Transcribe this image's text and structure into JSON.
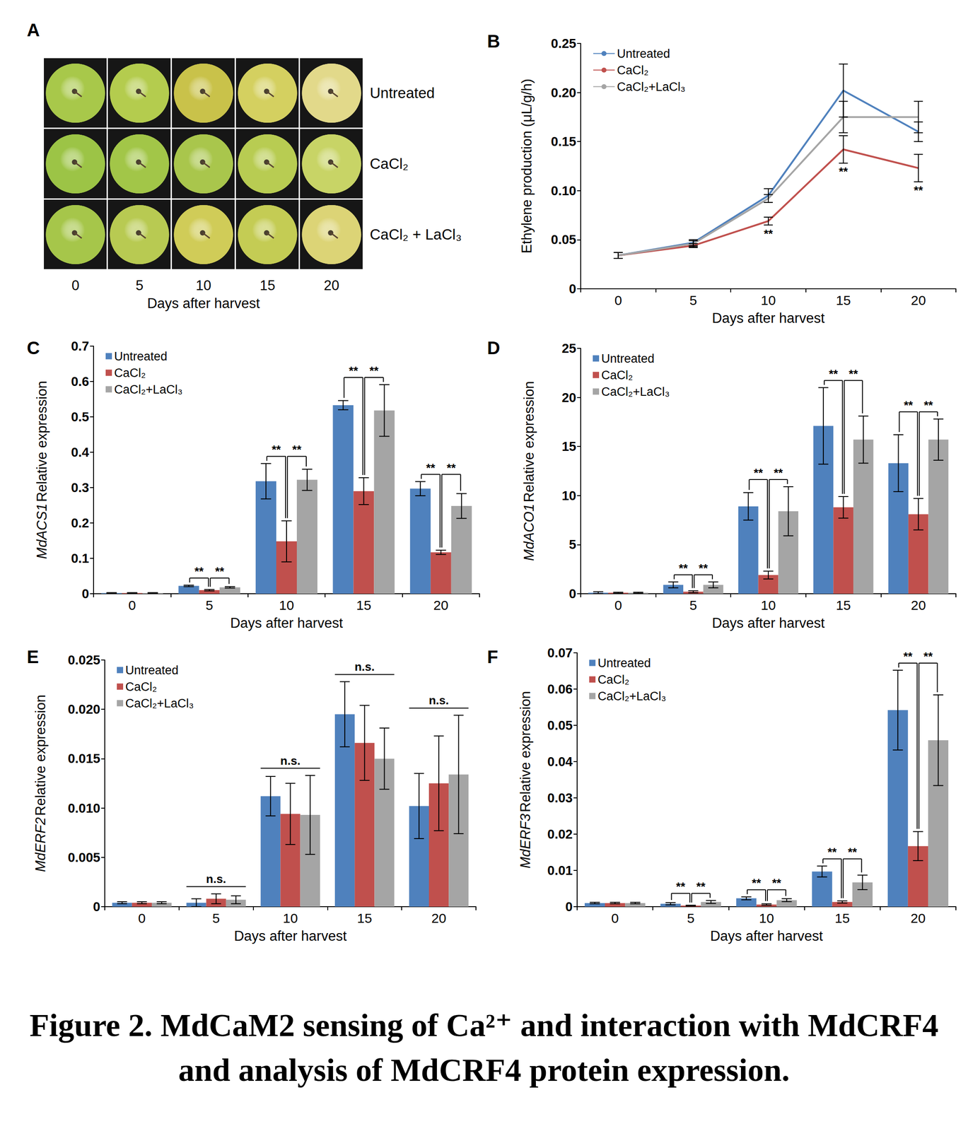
{
  "panel_a": {
    "panel": "A",
    "columns": [
      "0",
      "5",
      "10",
      "15",
      "20"
    ],
    "x_label": "Days after harvest",
    "rows": [
      {
        "label": "Untreated",
        "colors": [
          "#a8c84a",
          "#b4cc4e",
          "#c9c24a",
          "#d4d060",
          "#e2d98a"
        ]
      },
      {
        "label": "CaCl₂",
        "colors": [
          "#9cc446",
          "#a2c648",
          "#a9c64c",
          "#b8cc52",
          "#c8d466"
        ]
      },
      {
        "label": "CaCl₂ + LaCl₃",
        "colors": [
          "#a6c64a",
          "#b8ca52",
          "#d0cc58",
          "#c4cc54",
          "#dcd476"
        ]
      }
    ]
  },
  "chart_data": [
    {
      "panel": "B",
      "type": "line",
      "x_label": "Days after harvest",
      "y_label": "Ethylene production (μL/g/h)",
      "categories": [
        "0",
        "5",
        "10",
        "15",
        "20"
      ],
      "ylim": [
        0,
        0.25
      ],
      "yticks": [
        0,
        0.05,
        {
          "value": 0.1,
          "label": "0.10"
        },
        0.15,
        {
          "value": 0.2,
          "label": "0.20"
        },
        0.25
      ],
      "grid": false,
      "legend": "upper left",
      "marker": "none",
      "line_style": "solid",
      "series": [
        {
          "name": "Untreated",
          "color": "#4f81bd",
          "values": [
            0.034,
            0.047,
            0.095,
            0.202,
            0.16
          ],
          "errors": [
            0.003,
            0.003,
            0.007,
            0.027,
            0.01
          ]
        },
        {
          "name": "CaCl₂",
          "color": "#c0504d",
          "values": [
            0.034,
            0.044,
            0.069,
            0.142,
            0.123
          ],
          "errors": [
            0.003,
            0.002,
            0.004,
            0.014,
            0.014
          ]
        },
        {
          "name": "CaCl₂+LaCl₃",
          "color": "#a5a5a5",
          "values": [
            0.034,
            0.046,
            0.092,
            0.175,
            0.175
          ],
          "errors": [
            0.003,
            0.003,
            0.004,
            0.016,
            0.016
          ]
        }
      ],
      "annotations": [
        {
          "x": "10",
          "text": "**",
          "below": "CaCl₂"
        },
        {
          "x": "15",
          "text": "**",
          "below": "CaCl₂"
        },
        {
          "x": "20",
          "text": "**",
          "below": "CaCl₂"
        }
      ]
    },
    {
      "panel": "C",
      "type": "bar",
      "x_label": "Days after harvest",
      "y_label": "MdACS1 Relative expression",
      "categories": [
        "0",
        "5",
        "10",
        "15",
        "20"
      ],
      "ylim": [
        0,
        0.7
      ],
      "yticks": [
        0,
        0.1,
        0.2,
        0.3,
        0.4,
        0.5,
        0.6,
        0.7
      ],
      "grid": false,
      "legend": "upper left",
      "series": [
        {
          "name": "Untreated",
          "color": "#4f81bd",
          "values": [
            0.002,
            0.022,
            0.318,
            0.533,
            0.297
          ],
          "errors": [
            0.001,
            0.002,
            0.05,
            0.013,
            0.02
          ]
        },
        {
          "name": "CaCl₂",
          "color": "#c0504d",
          "values": [
            0.002,
            0.01,
            0.148,
            0.29,
            0.117
          ],
          "errors": [
            0.001,
            0.002,
            0.058,
            0.038,
            0.006
          ]
        },
        {
          "name": "CaCl₂+LaCl₃",
          "color": "#a5a5a5",
          "values": [
            0.002,
            0.018,
            0.322,
            0.518,
            0.248
          ],
          "errors": [
            0.001,
            0.002,
            0.03,
            0.073,
            0.035
          ]
        }
      ],
      "annotations": [
        {
          "x": "5",
          "text": "**",
          "between": [
            "Untreated",
            "CaCl₂"
          ]
        },
        {
          "x": "5",
          "text": "**",
          "between": [
            "CaCl₂",
            "CaCl₂+LaCl₃"
          ]
        },
        {
          "x": "10",
          "text": "**",
          "between": [
            "Untreated",
            "CaCl₂"
          ]
        },
        {
          "x": "10",
          "text": "**",
          "between": [
            "CaCl₂",
            "CaCl₂+LaCl₃"
          ]
        },
        {
          "x": "15",
          "text": "**",
          "between": [
            "Untreated",
            "CaCl₂"
          ]
        },
        {
          "x": "15",
          "text": "**",
          "between": [
            "CaCl₂",
            "CaCl₂+LaCl₃"
          ]
        },
        {
          "x": "20",
          "text": "**",
          "between": [
            "Untreated",
            "CaCl₂"
          ]
        },
        {
          "x": "20",
          "text": "**",
          "between": [
            "CaCl₂",
            "CaCl₂+LaCl₃"
          ]
        }
      ]
    },
    {
      "panel": "D",
      "type": "bar",
      "x_label": "Days after harvest",
      "y_label": "MdACO1 Relative expression",
      "categories": [
        "0",
        "5",
        "10",
        "15",
        "20"
      ],
      "ylim": [
        0,
        25
      ],
      "yticks": [
        0,
        5,
        10,
        15,
        20,
        25
      ],
      "grid": false,
      "legend": "upper left",
      "series": [
        {
          "name": "Untreated",
          "color": "#4f81bd",
          "values": [
            0.1,
            0.9,
            8.9,
            17.1,
            13.3
          ],
          "errors": [
            0.1,
            0.3,
            1.4,
            3.9,
            2.9
          ]
        },
        {
          "name": "CaCl₂",
          "color": "#c0504d",
          "values": [
            0.1,
            0.2,
            1.9,
            8.8,
            8.1
          ],
          "errors": [
            0.05,
            0.1,
            0.4,
            1.1,
            1.6
          ]
        },
        {
          "name": "CaCl₂+LaCl₃",
          "color": "#a5a5a5",
          "values": [
            0.1,
            0.9,
            8.4,
            15.7,
            15.7
          ],
          "errors": [
            0.05,
            0.3,
            2.5,
            2.4,
            2.1
          ]
        }
      ],
      "annotations": [
        {
          "x": "5",
          "text": "**",
          "between": [
            "Untreated",
            "CaCl₂"
          ]
        },
        {
          "x": "5",
          "text": "**",
          "between": [
            "CaCl₂",
            "CaCl₂+LaCl₃"
          ]
        },
        {
          "x": "10",
          "text": "**",
          "between": [
            "Untreated",
            "CaCl₂"
          ]
        },
        {
          "x": "10",
          "text": "**",
          "between": [
            "CaCl₂",
            "CaCl₂+LaCl₃"
          ]
        },
        {
          "x": "15",
          "text": "**",
          "between": [
            "Untreated",
            "CaCl₂"
          ]
        },
        {
          "x": "15",
          "text": "**",
          "between": [
            "CaCl₂",
            "CaCl₂+LaCl₃"
          ]
        },
        {
          "x": "20",
          "text": "**",
          "between": [
            "Untreated",
            "CaCl₂"
          ]
        },
        {
          "x": "20",
          "text": "**",
          "between": [
            "CaCl₂",
            "CaCl₂+LaCl₃"
          ]
        }
      ]
    },
    {
      "panel": "E",
      "type": "bar",
      "x_label": "Days after harvest",
      "y_label": "MdERF2 Relative expression",
      "categories": [
        "0",
        "5",
        "10",
        "15",
        "20"
      ],
      "ylim": [
        0,
        0.025
      ],
      "yticks": [
        0,
        0.005,
        {
          "value": 0.01,
          "label": "0.010"
        },
        0.015,
        {
          "value": 0.02,
          "label": "0.020"
        },
        0.025
      ],
      "grid": false,
      "legend": "upper left",
      "series": [
        {
          "name": "Untreated",
          "color": "#4f81bd",
          "values": [
            0.0004,
            0.0004,
            0.0112,
            0.0195,
            0.0102
          ],
          "errors": [
            0.0001,
            0.0004,
            0.002,
            0.0033,
            0.0033
          ]
        },
        {
          "name": "CaCl₂",
          "color": "#c0504d",
          "values": [
            0.0004,
            0.0008,
            0.0094,
            0.0166,
            0.0125
          ],
          "errors": [
            0.0001,
            0.0005,
            0.0031,
            0.0038,
            0.0048
          ]
        },
        {
          "name": "CaCl₂+LaCl₃",
          "color": "#a5a5a5",
          "values": [
            0.0004,
            0.0007,
            0.0093,
            0.015,
            0.0134
          ],
          "errors": [
            0.0001,
            0.0004,
            0.004,
            0.0031,
            0.006
          ]
        }
      ],
      "annotations": [
        {
          "x": "5",
          "text": "n.s.",
          "between": [
            "Untreated",
            "CaCl₂",
            "CaCl₂+LaCl₃"
          ]
        },
        {
          "x": "10",
          "text": "n.s.",
          "between": [
            "Untreated",
            "CaCl₂",
            "CaCl₂+LaCl₃"
          ]
        },
        {
          "x": "15",
          "text": "n.s.",
          "between": [
            "Untreated",
            "CaCl₂",
            "CaCl₂+LaCl₃"
          ]
        },
        {
          "x": "20",
          "text": "n.s.",
          "between": [
            "Untreated",
            "CaCl₂",
            "CaCl₂+LaCl₃"
          ]
        }
      ]
    },
    {
      "panel": "F",
      "type": "bar",
      "x_label": "Days after harvest",
      "y_label": "MdERF3 Relative expression",
      "categories": [
        "0",
        "5",
        "10",
        "15",
        "20"
      ],
      "ylim": [
        0,
        0.07
      ],
      "yticks": [
        0,
        0.01,
        0.02,
        0.03,
        0.04,
        0.05,
        0.06,
        0.07
      ],
      "grid": false,
      "legend": "upper left",
      "series": [
        {
          "name": "Untreated",
          "color": "#4f81bd",
          "values": [
            0.001,
            0.0008,
            0.0023,
            0.0097,
            0.0542
          ],
          "errors": [
            0.0002,
            0.0003,
            0.0004,
            0.0015,
            0.011
          ]
        },
        {
          "name": "CaCl₂",
          "color": "#c0504d",
          "values": [
            0.001,
            0.0003,
            0.0006,
            0.0013,
            0.0167
          ],
          "errors": [
            0.0002,
            0.0001,
            0.0002,
            0.0003,
            0.004
          ]
        },
        {
          "name": "CaCl₂+LaCl₃",
          "color": "#a5a5a5",
          "values": [
            0.001,
            0.0013,
            0.0018,
            0.0067,
            0.0459
          ],
          "errors": [
            0.0002,
            0.0004,
            0.0004,
            0.002,
            0.0125
          ]
        }
      ],
      "annotations": [
        {
          "x": "5",
          "text": "**",
          "between": [
            "Untreated",
            "CaCl₂"
          ]
        },
        {
          "x": "5",
          "text": "**",
          "between": [
            "CaCl₂",
            "CaCl₂+LaCl₃"
          ]
        },
        {
          "x": "10",
          "text": "**",
          "between": [
            "Untreated",
            "CaCl₂"
          ]
        },
        {
          "x": "10",
          "text": "**",
          "between": [
            "CaCl₂",
            "CaCl₂+LaCl₃"
          ]
        },
        {
          "x": "15",
          "text": "**",
          "between": [
            "Untreated",
            "CaCl₂"
          ]
        },
        {
          "x": "15",
          "text": "**",
          "between": [
            "CaCl₂",
            "CaCl₂+LaCl₃"
          ]
        },
        {
          "x": "20",
          "text": "**",
          "between": [
            "Untreated",
            "CaCl₂"
          ]
        },
        {
          "x": "20",
          "text": "**",
          "between": [
            "CaCl₂",
            "CaCl₂+LaCl₃"
          ]
        }
      ]
    }
  ],
  "caption": "Figure 2. MdCaM2 sensing of Ca²⁺ and interaction with MdCRF4 and analysis of MdCRF4 protein expression."
}
